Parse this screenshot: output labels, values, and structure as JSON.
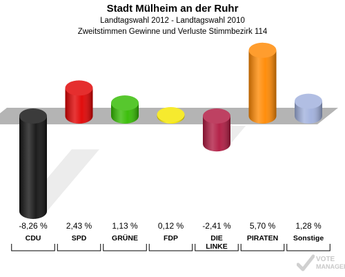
{
  "header": {
    "title": "Stadt Mülheim an der Ruhr",
    "subtitle": "Landtagswahl 2012 - Landtagswahl 2010",
    "description": "Zweitstimmen Gewinne und Verluste Stimmbezirk 114"
  },
  "logo": {
    "line1": "VOTE",
    "line2": "MANAGER"
  },
  "colors": {
    "band": "#b4b4b4",
    "shadow": "#ececec"
  },
  "chart_data": {
    "type": "bar",
    "categories": [
      "CDU",
      "SPD",
      "GRÜNE",
      "FDP",
      "DIE LINKE",
      "PIRATEN",
      "Sonstige"
    ],
    "category_lines": [
      [
        "CDU"
      ],
      [
        "SPD"
      ],
      [
        "GRÜNE"
      ],
      [
        "FDP"
      ],
      [
        "DIE",
        "LINKE"
      ],
      [
        "PIRATEN"
      ],
      [
        "Sonstige"
      ]
    ],
    "values": [
      -8.26,
      2.43,
      1.13,
      0.12,
      -2.41,
      5.7,
      1.28
    ],
    "value_labels": [
      "-8,26 %",
      "2,43 %",
      "1,13 %",
      "0,12 %",
      "-2,41 %",
      "5,70 %",
      "1,28 %"
    ],
    "colors": [
      "#111111",
      "#e00000",
      "#33bb00",
      "#f5e600",
      "#b01840",
      "#ff8800",
      "#a0b0dd"
    ],
    "title": "Stadt Mülheim an der Ruhr",
    "xlabel": "",
    "ylabel": ""
  }
}
